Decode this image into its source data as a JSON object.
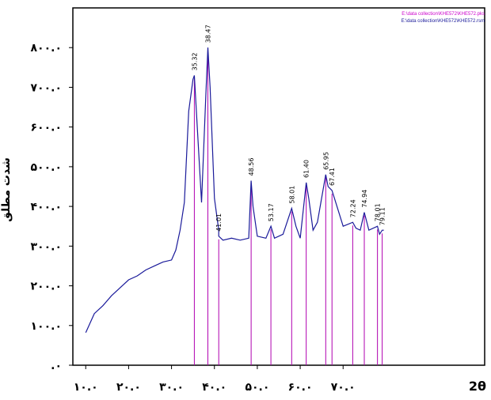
{
  "chart_data": {
    "type": "line",
    "title": "",
    "xlabel": "2θ",
    "ylabel": "شدت مطلق",
    "xlim": [
      7,
      103
    ],
    "ylim": [
      0,
      900
    ],
    "x_ticks": [
      10,
      20,
      30,
      40,
      50,
      60,
      70
    ],
    "x_tick_labels": [
      "۱۰.۰",
      "۲۰.۰",
      "۳۰.۰",
      "۴۰.۰",
      "۵۰.۰",
      "۶۰.۰",
      "۷۰.۰"
    ],
    "y_ticks": [
      0,
      100,
      200,
      300,
      400,
      500,
      600,
      700,
      800
    ],
    "y_tick_labels": [
      ".۰",
      "۱۰۰.۰",
      "۲۰۰.۰",
      "۳۰۰.۰",
      "۴۰۰.۰",
      "۵۰۰.۰",
      "۶۰۰.۰",
      "۷۰۰.۰",
      "۸۰۰.۰"
    ],
    "legend_items": [
      "E:\\data collection\\KHE572\\KHE572.pks",
      "E:\\data collection\\KHE572\\KHE572.rsm"
    ],
    "series": [
      {
        "color": "#1a1a9a",
        "x": [
          10,
          12,
          14,
          16,
          18,
          20,
          22,
          24,
          26,
          28,
          30,
          31,
          32,
          33,
          34,
          35,
          35.32,
          36,
          37,
          38,
          38.47,
          39,
          40,
          41,
          41.01,
          42,
          44,
          46,
          48,
          48.56,
          49,
          50,
          52,
          53.17,
          54,
          56,
          58.01,
          59,
          60,
          61.4,
          62,
          63,
          64,
          65.95,
          66.5,
          67.41,
          68,
          70,
          72.24,
          73,
          74,
          74.94,
          76,
          78.01,
          78.5,
          79.11,
          79.5
        ],
        "y": [
          82,
          130,
          150,
          175,
          195,
          215,
          225,
          240,
          250,
          260,
          265,
          290,
          340,
          410,
          640,
          720,
          730,
          600,
          410,
          680,
          800,
          700,
          420,
          340,
          325,
          315,
          320,
          315,
          320,
          465,
          400,
          325,
          320,
          350,
          320,
          330,
          395,
          350,
          320,
          460,
          420,
          340,
          360,
          480,
          450,
          440,
          420,
          350,
          360,
          345,
          340,
          385,
          340,
          350,
          330,
          340,
          340
        ]
      }
    ],
    "peak_markers": [
      {
        "x": 35.32,
        "label": "35.32",
        "height": 730
      },
      {
        "x": 38.47,
        "label": "38.47",
        "height": 800
      },
      {
        "x": 41.01,
        "label": "41.01",
        "height": 325
      },
      {
        "x": 48.56,
        "label": "48.56",
        "height": 465
      },
      {
        "x": 53.17,
        "label": "53.17",
        "height": 350
      },
      {
        "x": 58.01,
        "label": "58.01",
        "height": 395
      },
      {
        "x": 61.4,
        "label": "61.40",
        "height": 460
      },
      {
        "x": 65.95,
        "label": "65.95",
        "height": 480
      },
      {
        "x": 67.41,
        "label": "67.41",
        "height": 440
      },
      {
        "x": 72.24,
        "label": "72.24",
        "height": 360
      },
      {
        "x": 74.94,
        "label": "74.94",
        "height": 385
      },
      {
        "x": 78.01,
        "label": "78.01",
        "height": 350
      },
      {
        "x": 79.11,
        "label": "79.11",
        "height": 340
      }
    ],
    "grid": false,
    "legend_position": "top-right",
    "colors": {
      "line": "#1a1a9a",
      "markers": "#b000b0",
      "axis": "#000000"
    }
  }
}
